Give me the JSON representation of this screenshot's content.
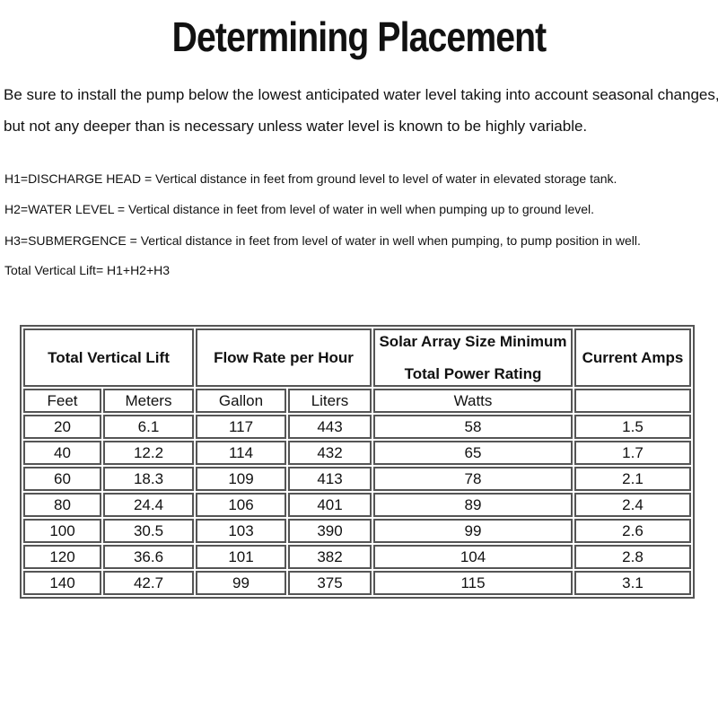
{
  "title": "Determining Placement",
  "intro": [
    "Be sure to install the pump below the lowest anticipated water level taking into account seasonal changes,",
    "but not any deeper than is  necessary unless water level is known to be highly variable."
  ],
  "definitions": [
    "H1=DISCHARGE HEAD = Vertical distance in feet from ground level to level of water in elevated storage tank.",
    "H2=WATER LEVEL = Vertical distance in feet from level of water in well when pumping up to ground level.",
    "H3=SUBMERGENCE = Vertical distance in feet from level of water in well when pumping, to pump position in well.",
    "Total Vertical Lift=  H1+H2+H3"
  ],
  "table": {
    "headers": {
      "lift": "Total Vertical Lift",
      "flow": "Flow Rate per Hour",
      "solar_line1": "Solar Array Size Minimum",
      "solar_line2": "Total Power Rating",
      "amps": "Current Amps"
    },
    "units": [
      "Feet",
      "Meters",
      "Gallon",
      "Liters",
      "Watts",
      ""
    ],
    "rows": [
      [
        "20",
        "6.1",
        "117",
        "443",
        "58",
        "1.5"
      ],
      [
        "40",
        "12.2",
        "114",
        "432",
        "65",
        "1.7"
      ],
      [
        "60",
        "18.3",
        "109",
        "413",
        "78",
        "2.1"
      ],
      [
        "80",
        "24.4",
        "106",
        "401",
        "89",
        "2.4"
      ],
      [
        "100",
        "30.5",
        "103",
        "390",
        "99",
        "2.6"
      ],
      [
        "120",
        "36.6",
        "101",
        "382",
        "104",
        "2.8"
      ],
      [
        "140",
        "42.7",
        "99",
        "375",
        "115",
        "3.1"
      ]
    ]
  }
}
